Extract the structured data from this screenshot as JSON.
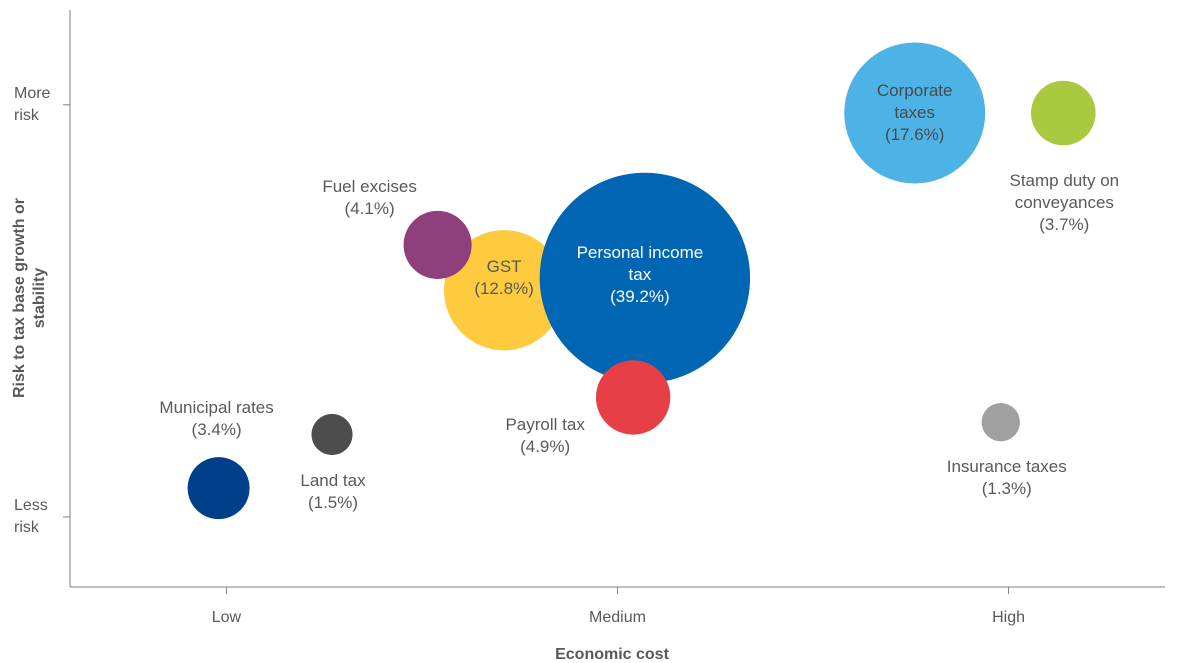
{
  "chart_data": {
    "type": "bubble",
    "x_label": "Economic cost",
    "y_label": "Risk to tax base growth or stability",
    "labels": [
      "Corporate taxes",
      "Stamp duty on conveyances",
      "GST",
      "Personal income tax",
      "Fuel excises",
      "Payroll tax",
      "Municipal rates",
      "Land tax",
      "Insurance taxes"
    ],
    "x": [
      2.76,
      3.14,
      1.71,
      2.07,
      1.54,
      2.04,
      0.98,
      1.27,
      2.98
    ],
    "values": [
      1.98,
      1.98,
      1.55,
      1.58,
      1.66,
      1.29,
      1.07,
      1.2,
      1.23
    ],
    "sizes": [
      17.6,
      3.7,
      12.8,
      39.2,
      4.1,
      4.9,
      3.4,
      1.5,
      1.3
    ],
    "size_labels": [
      "(17.6%)",
      "(3.7%)",
      "(12.8%)",
      "(39.2%)",
      "(4.1%)",
      "(4.9%)",
      "(3.4%)",
      "(1.5%)",
      "(1.3%)"
    ],
    "colors": [
      "#4db3e6",
      "#a9c940",
      "#fecb3e",
      "#0066b3",
      "#8e3f7c",
      "#e63f46",
      "#00408a",
      "#4d4d4d",
      "#a0a0a0"
    ],
    "xlim": [
      0.6,
      3.4
    ],
    "xticks": [
      {
        "value": 1,
        "label": "Low"
      },
      {
        "value": 2,
        "label": "Medium"
      },
      {
        "value": 3,
        "label": "High"
      }
    ],
    "ylim": [
      0.83,
      2.23
    ],
    "yticks": [
      {
        "value": 1,
        "label": "Less risk"
      },
      {
        "value": 2,
        "label": "More risk"
      }
    ]
  }
}
